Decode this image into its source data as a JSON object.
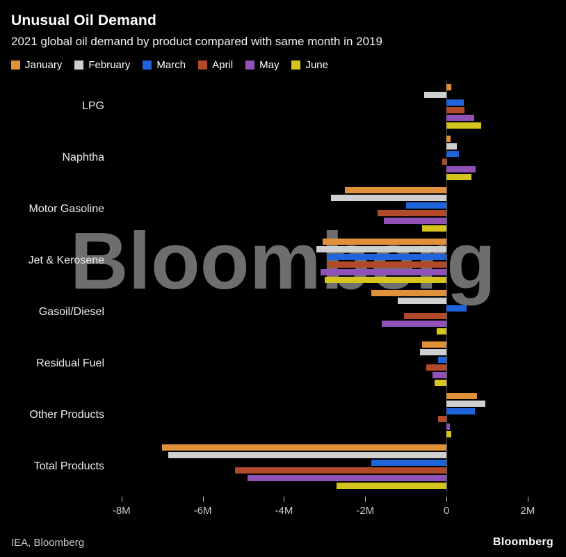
{
  "header": {
    "title": "Unusual Oil Demand",
    "subtitle": "2021 global oil demand by product compared with same month in 2019"
  },
  "watermark": "Bloomberg",
  "footer": {
    "source": "IEA, Bloomberg",
    "logo": "Bloomberg"
  },
  "colors": {
    "background": "#000000",
    "text": "#ffffff",
    "axis_text": "#c8c8c8",
    "zero_line": "#585858",
    "watermark": "#6e6e6e"
  },
  "chart_data": {
    "type": "bar",
    "orientation": "horizontal",
    "title": "Unusual Oil Demand",
    "subtitle": "2021 global oil demand by product compared with same month in 2019",
    "unit": "million barrels a day vs 2019 (M)",
    "legend_position": "top",
    "grid": false,
    "axis_range": {
      "min": -8.15,
      "max": 2.6
    },
    "categories": [
      "LPG",
      "Naphtha",
      "Motor Gasoline",
      "Jet & Kerosene",
      "Gasoil/Diesel",
      "Residual Fuel",
      "Other Products",
      "Total Products"
    ],
    "series": [
      {
        "name": "January",
        "color": "#E09038",
        "values": [
          0.12,
          0.1,
          -2.5,
          -3.05,
          -1.85,
          -0.6,
          0.75,
          -7.0
        ]
      },
      {
        "name": "February",
        "color": "#CFCFCF",
        "values": [
          -0.55,
          0.25,
          -2.85,
          -3.2,
          -1.2,
          -0.65,
          0.95,
          -6.85
        ]
      },
      {
        "name": "March",
        "color": "#2064DC",
        "values": [
          0.42,
          0.3,
          -1.0,
          -2.95,
          0.5,
          -0.2,
          0.7,
          -1.85
        ]
      },
      {
        "name": "April",
        "color": "#B04A2B",
        "values": [
          0.45,
          -0.1,
          -1.7,
          -2.95,
          -1.05,
          -0.5,
          -0.2,
          -5.2
        ]
      },
      {
        "name": "May",
        "color": "#9152B8",
        "values": [
          0.68,
          0.72,
          -1.55,
          -3.1,
          -1.6,
          -0.35,
          0.08,
          -4.9
        ]
      },
      {
        "name": "June",
        "color": "#D6C41E",
        "values": [
          0.85,
          0.62,
          -0.6,
          -3.0,
          -0.25,
          -0.3,
          0.12,
          -2.7
        ]
      }
    ],
    "x_ticks": [
      {
        "value": -8,
        "label": "-8M"
      },
      {
        "value": -6,
        "label": "-6M"
      },
      {
        "value": -4,
        "label": "-4M"
      },
      {
        "value": -2,
        "label": "-2M"
      },
      {
        "value": 0,
        "label": "0"
      },
      {
        "value": 2,
        "label": "2M"
      }
    ]
  }
}
